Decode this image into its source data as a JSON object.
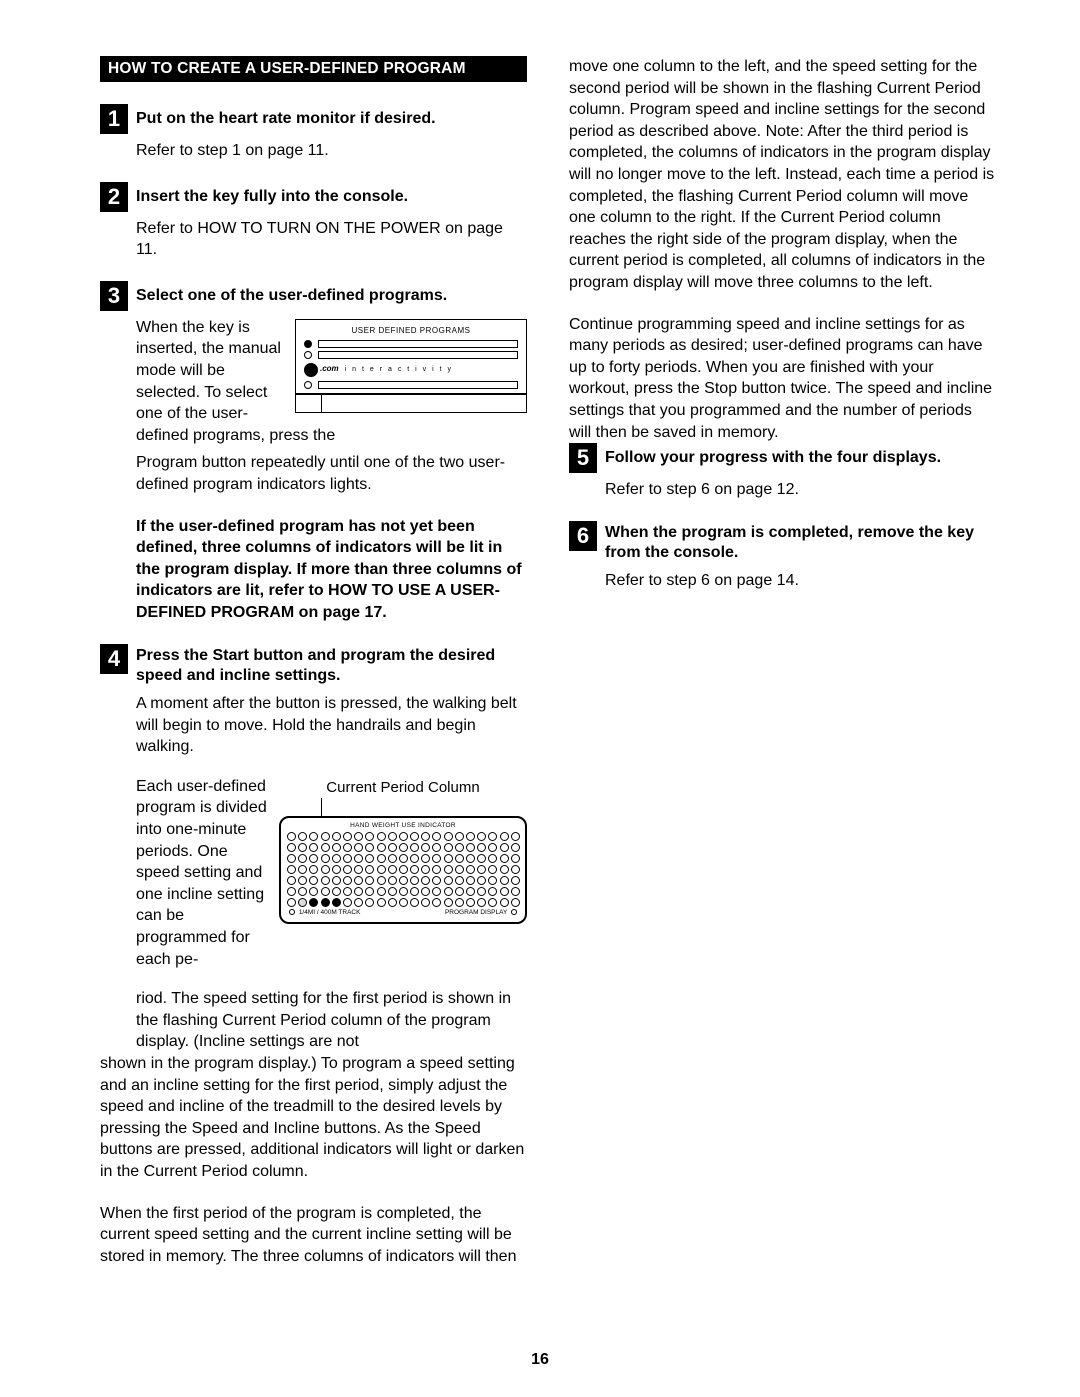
{
  "heading": "HOW TO CREATE A USER-DEFINED PROGRAM",
  "steps": {
    "1": {
      "num": "1",
      "title": "Put on the heart rate monitor if desired.",
      "body": "Refer to step 1 on page 11."
    },
    "2": {
      "num": "2",
      "title": "Insert the key fully into the console.",
      "body": "Refer to HOW TO TURN ON THE POWER on page 11."
    },
    "3": {
      "num": "3",
      "title": "Select one of the user-defined programs.",
      "wrap_text": "When the key is inserted, the manual mode will be selected. To select one of the user-defined pro­grams, press the",
      "after": "Program button repeatedly until one of the two user-defined program indicators lights.",
      "bold_para": "If the user-defined program has not yet been defined, three columns of indicators will be lit in the program display. If more than three columns of indicators are lit, refer to HOW TO USE A USER-DEFINED PROGRAM on page 17.",
      "fig_label": "USER DEFINED PROGRAMS",
      "fig_logo": ".com",
      "fig_interact": "i n t e r a c t i v i t y"
    },
    "4": {
      "num": "4",
      "title": "Press the Start button and program the de­sired speed and incline settings.",
      "p1": "A moment after the button is pressed, the walking belt will begin to move. Hold the handrails and begin walking.",
      "wrap_text": "Each user-defined program is divided into one-minute periods. One speed setting and one incline setting can be programmed for each pe-",
      "after_wrap": "riod. The speed setting for the first period is shown in the flashing Current Period column of the program display. (Incline settings are not",
      "fig2_caption": "Current Period Column",
      "fig2_top": "HAND WEIGHT USE INDICATOR",
      "fig2_left": "1/4MI / 400M TRACK",
      "fig2_right": "PROGRAM DISPLAY",
      "col2_p1": "shown in the program display.) To program a speed setting and an incline setting for the first period, simply adjust the speed and incline of the treadmill to the desired levels by pressing the Speed and Incline buttons. As the Speed buttons are pressed, additional indicators will light or darken in the Current Period column.",
      "col2_p2": "When the first period of the program is completed, the current speed setting and the current incline setting will be stored in memory. The three columns of indicators will then move one column to the left, and the speed setting for the second period will be shown in the flashing Current Period column. Program speed and incline settings for the second period as described above. Note: After the third period is completed, the columns of indi­cators in the program display will no longer move to the left. Instead, each time a period is com­pleted, the flashing Current Period column will move one column to the right. If the Current Period column reaches the right side of the pro­gram display, when the current period is com­pleted, all columns of indicators in the program display will move three columns to the left.",
      "col2_p3": "Continue programming speed and incline settings for as many periods as desired; user-defined pro­grams can have up to forty periods. When you are finished with your workout, press the Stop button twice. The speed and incline settings that you pro­grammed and the number of periods will then be saved in memory."
    },
    "5": {
      "num": "5",
      "title": "Follow your progress with the four displays.",
      "body": "Refer to step 6 on page 12."
    },
    "6": {
      "num": "6",
      "title": "When the program is completed, remove the key from the console.",
      "body": "Refer to step 6 on page 14."
    }
  },
  "page_number": "16"
}
